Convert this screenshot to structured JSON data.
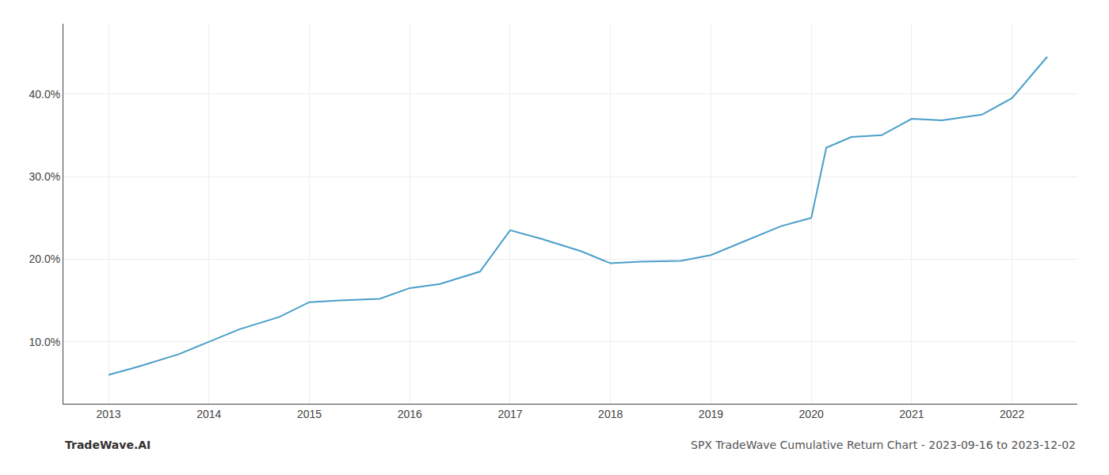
{
  "chart_data": {
    "type": "line",
    "title": "SPX TradeWave Cumulative Return Chart - 2023-09-16 to 2023-12-02",
    "annotations": [
      "TradeWave.AI"
    ],
    "x": [
      2013.0,
      2013.3,
      2013.7,
      2014.0,
      2014.3,
      2014.7,
      2015.0,
      2015.3,
      2015.7,
      2016.0,
      2016.3,
      2016.7,
      2017.0,
      2017.3,
      2017.7,
      2018.0,
      2018.3,
      2018.7,
      2019.0,
      2019.3,
      2019.7,
      2020.0,
      2020.15,
      2020.4,
      2020.7,
      2021.0,
      2021.3,
      2021.7,
      2022.0,
      2022.35
    ],
    "values": [
      6.0,
      7.0,
      8.5,
      10.0,
      11.5,
      13.0,
      14.8,
      15.0,
      15.2,
      16.5,
      17.0,
      18.5,
      23.5,
      22.5,
      21.0,
      19.5,
      19.7,
      19.8,
      20.5,
      22.0,
      24.0,
      25.0,
      33.5,
      34.8,
      35.0,
      37.0,
      36.8,
      37.5,
      39.5,
      44.5
    ],
    "color": "#4a9fc8",
    "xlim": [
      2012.55,
      2022.65
    ],
    "xticks": [
      2013,
      2014,
      2015,
      2016,
      2017,
      2018,
      2019,
      2020,
      2021,
      2022
    ],
    "ylim": [
      2.5,
      48.5
    ],
    "yticks": [
      {
        "value": 10.0,
        "label": "10.0%"
      },
      {
        "value": 20.0,
        "label": "20.0%"
      },
      {
        "value": 30.0,
        "label": "30.0%"
      },
      {
        "value": 40.0,
        "label": "40.0%"
      }
    ],
    "grid": true
  }
}
